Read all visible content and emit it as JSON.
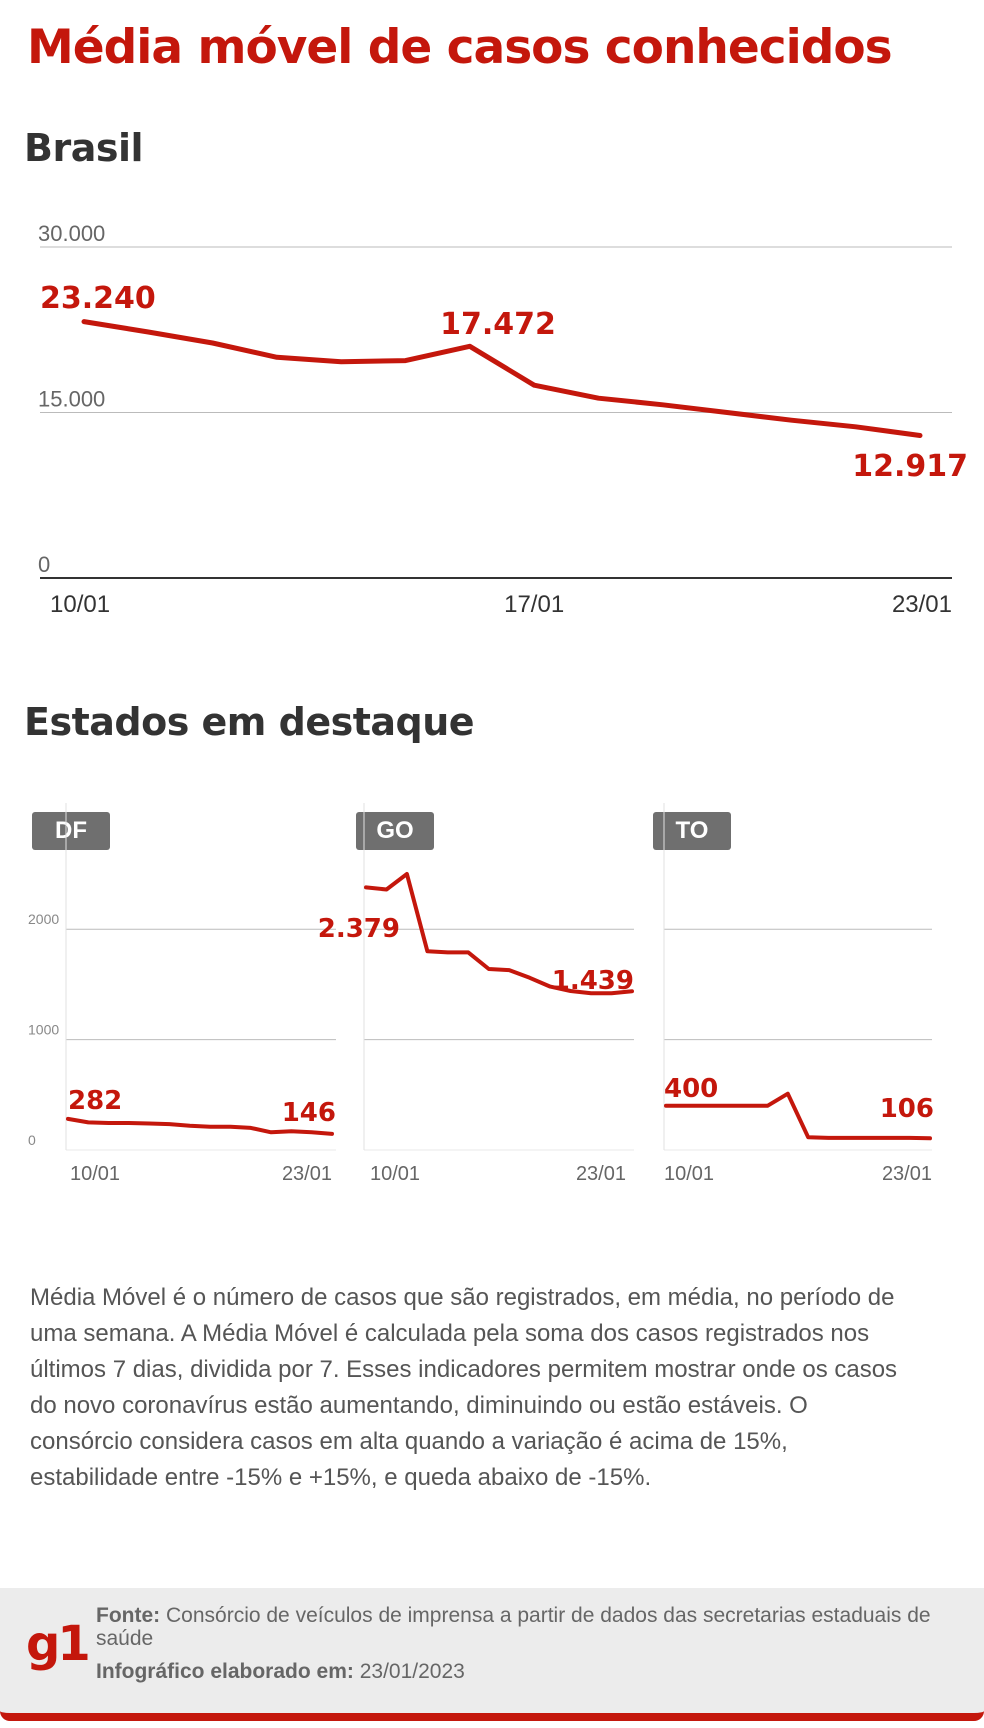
{
  "title": "Média móvel de casos conhecidos",
  "brasil_title": "Brasil",
  "estados_title": "Estados em destaque",
  "description": {
    "p1": "Média Móvel é o número de casos que são registrados, em média, no período de uma semana. A Média Móvel é calculada pela soma dos casos registrados nos últimos 7 dias, dividida por 7. Esses indicadores permitem mostrar onde os casos do novo coronavírus estão aumentando, diminuindo ou estão estáveis. O consórcio considera casos em alta quando a variação é acima de 15%, estabilidade entre -15% e +15%, e queda abaixo de -15%."
  },
  "footer": {
    "logo": "g1",
    "source_label": "Fonte:",
    "source_text": "Consórcio de veículos de imprensa a partir de dados das secretarias estaduais de saúde",
    "date_label": "Infográfico elaborado em:",
    "date_text": "23/01/2023"
  },
  "colors": {
    "accent": "#c4170c",
    "grid": "#bbbbbb",
    "text": "#333333",
    "tag_bg": "#6f6f6f"
  },
  "chart_data": [
    {
      "type": "line",
      "title": "Brasil",
      "x": [
        "10/01",
        "11/01",
        "12/01",
        "13/01",
        "14/01",
        "15/01",
        "16/01",
        "17/01",
        "18/01",
        "19/01",
        "20/01",
        "21/01",
        "22/01",
        "23/01"
      ],
      "series": [
        {
          "values": [
            23240,
            22300,
            21300,
            20000,
            19600,
            19700,
            21000,
            17472,
            16300,
            15700,
            15000,
            14300,
            13700,
            12917
          ]
        }
      ],
      "ylim": [
        0,
        30000
      ],
      "yticks": [
        0,
        15000,
        30000
      ],
      "ytick_labels": [
        "0",
        "15.000",
        "30.000"
      ],
      "xtick_labels": [
        "10/01",
        "17/01",
        "23/01"
      ],
      "labels": [
        {
          "index": 0,
          "text": "23.240"
        },
        {
          "index": 7,
          "text": "17.472"
        },
        {
          "index": 13,
          "text": "12.917"
        }
      ],
      "grid": true
    },
    {
      "type": "line",
      "title": "DF",
      "x": [
        "10/01",
        "11/01",
        "12/01",
        "13/01",
        "14/01",
        "15/01",
        "16/01",
        "17/01",
        "18/01",
        "19/01",
        "20/01",
        "21/01",
        "22/01",
        "23/01"
      ],
      "series": [
        {
          "values": [
            282,
            250,
            245,
            245,
            240,
            235,
            220,
            210,
            210,
            200,
            160,
            170,
            160,
            146
          ]
        }
      ],
      "ylim": [
        0,
        2600
      ],
      "yticks": [
        0,
        1000,
        2000
      ],
      "ytick_labels": [
        "0",
        "1000",
        "2000"
      ],
      "xtick_labels": [
        "10/01",
        "23/01"
      ],
      "labels": [
        {
          "index": 0,
          "text": "282"
        },
        {
          "index": 13,
          "text": "146"
        }
      ],
      "grid": true
    },
    {
      "type": "line",
      "title": "GO",
      "x": [
        "10/01",
        "11/01",
        "12/01",
        "13/01",
        "14/01",
        "15/01",
        "16/01",
        "17/01",
        "18/01",
        "19/01",
        "20/01",
        "21/01",
        "22/01",
        "23/01"
      ],
      "series": [
        {
          "values": [
            2379,
            2360,
            2500,
            1800,
            1790,
            1790,
            1640,
            1630,
            1560,
            1480,
            1440,
            1420,
            1420,
            1439
          ]
        }
      ],
      "ylim": [
        0,
        2600
      ],
      "yticks": [
        0,
        1000,
        2000
      ],
      "ytick_labels": [
        "",
        "",
        ""
      ],
      "xtick_labels": [
        "10/01",
        "23/01"
      ],
      "labels": [
        {
          "index": 0,
          "text": "2.379"
        },
        {
          "index": 13,
          "text": "1.439"
        }
      ],
      "grid": true
    },
    {
      "type": "line",
      "title": "TO",
      "x": [
        "10/01",
        "11/01",
        "12/01",
        "13/01",
        "14/01",
        "15/01",
        "16/01",
        "17/01",
        "18/01",
        "19/01",
        "20/01",
        "21/01",
        "22/01",
        "23/01"
      ],
      "series": [
        {
          "values": [
            400,
            400,
            400,
            400,
            400,
            400,
            510,
            115,
            110,
            110,
            110,
            110,
            110,
            106
          ]
        }
      ],
      "ylim": [
        0,
        2600
      ],
      "yticks": [
        0,
        1000,
        2000
      ],
      "ytick_labels": [
        "",
        "",
        ""
      ],
      "xtick_labels": [
        "10/01",
        "23/01"
      ],
      "labels": [
        {
          "index": 0,
          "text": "400"
        },
        {
          "index": 13,
          "text": "106"
        }
      ],
      "grid": true
    }
  ]
}
